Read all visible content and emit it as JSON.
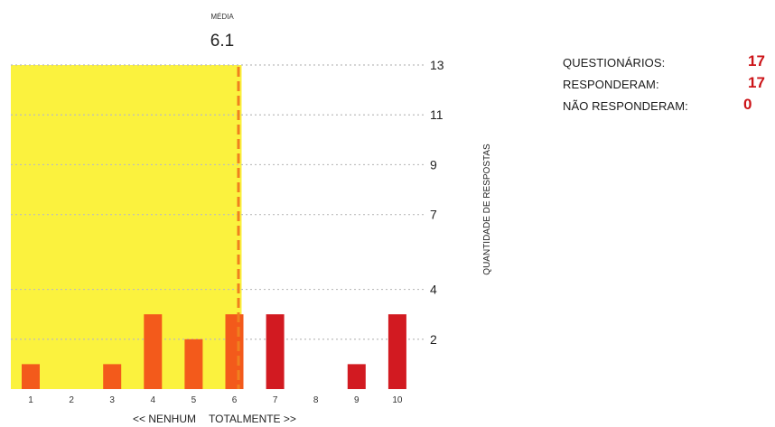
{
  "chart_data": {
    "type": "bar",
    "mean_label": "MÉDIA",
    "mean_value": 6.1,
    "mean_text": "6.1",
    "categories": [
      "1",
      "2",
      "3",
      "4",
      "5",
      "6",
      "7",
      "8",
      "9",
      "10"
    ],
    "values": [
      1,
      0,
      1,
      3,
      2,
      3,
      3,
      0,
      1,
      3
    ],
    "ylabel": "QUANTIDADE DE RESPOSTAS",
    "yticks": [
      2,
      4,
      7,
      9,
      11,
      13
    ],
    "ylim": [
      0,
      13
    ],
    "xlabel_left": "<< NENHUM",
    "xlabel_right": "TOTALMENTE >>",
    "highlight_range": [
      1,
      6
    ],
    "colors": {
      "highlight": "#fbf23e",
      "bar_in_highlight": "#f35a1b",
      "bar": "#d21a21",
      "mean_line": "#f0801e",
      "grid": "#bcbcbc"
    }
  },
  "stats": {
    "questionarios": {
      "label": "QUESTIONÁRIOS:",
      "value": "17"
    },
    "responderam": {
      "label": "RESPONDERAM:",
      "value": "17"
    },
    "nao_responderam": {
      "label": "NÃO RESPONDERAM:",
      "value": "0"
    }
  }
}
